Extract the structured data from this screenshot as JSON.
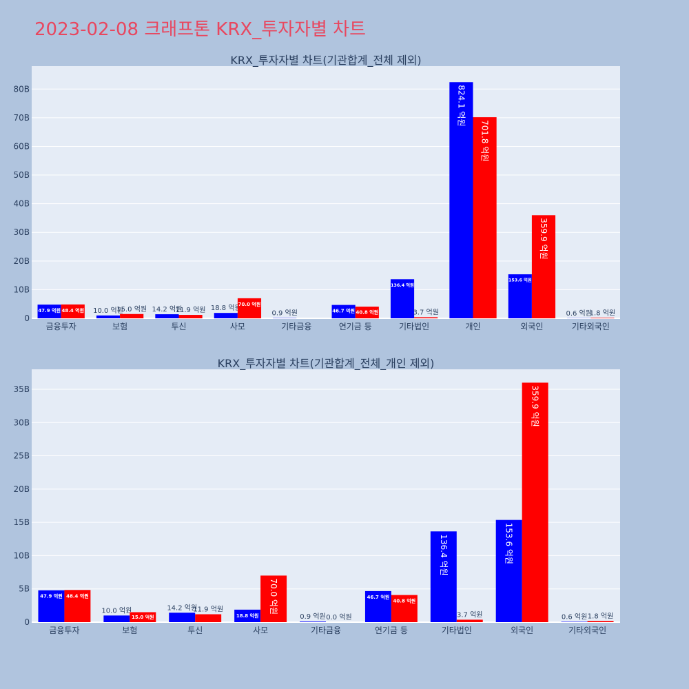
{
  "page": {
    "title": "2023-02-08 크래프톤 KRX_투자자별 차트"
  },
  "colors": {
    "buy": "#0000ff",
    "sell": "#ff0000",
    "background": "#b0c4de",
    "plot_background": "#e5ecf6",
    "title": "#e8475f"
  },
  "chart_data": [
    {
      "type": "bar",
      "title": "KRX_투자자별 차트(기관합계_전체 제외)",
      "categories": [
        "금융투자",
        "보험",
        "투신",
        "사모",
        "기타금융",
        "연기금 등",
        "기타법인",
        "개인",
        "외국인",
        "기타외국인"
      ],
      "ylim": [
        0,
        88
      ],
      "y_ticks": [
        0,
        10,
        20,
        30,
        40,
        50,
        60,
        70,
        80
      ],
      "y_tick_labels": [
        "0",
        "10B",
        "20B",
        "30B",
        "40B",
        "50B",
        "60B",
        "70B",
        "80B"
      ],
      "grid": true,
      "legend": "none",
      "series": [
        {
          "values": [
            4.79,
            1.0,
            1.42,
            1.88,
            0.09,
            4.67,
            13.64,
            82.41,
            15.36,
            0.06
          ],
          "labels": [
            "47.9 억원",
            "10.0 억원",
            "14.2 억원",
            "18.8 억원",
            "0.9 억원",
            "46.7 억원",
            "136.4 억원",
            "824.1 억원",
            "153.6 억원",
            "0.6 억원"
          ]
        },
        {
          "values": [
            4.84,
            1.5,
            1.19,
            7.0,
            null,
            4.08,
            0.37,
            70.18,
            35.99,
            0.18
          ],
          "labels": [
            "48.4 억원",
            "15.0 억원",
            "11.9 억원",
            "70.0 억원",
            null,
            "40.8 억원",
            "3.7 억원",
            "701.8 억원",
            "359.9 억원",
            "1.8 억원"
          ]
        }
      ]
    },
    {
      "type": "bar",
      "title": "KRX_투자자별 차트(기관합계_전체_개인 제외)",
      "categories": [
        "금융투자",
        "보험",
        "투신",
        "사모",
        "기타금융",
        "연기금 등",
        "기타법인",
        "외국인",
        "기타외국인"
      ],
      "ylim": [
        0,
        38
      ],
      "y_ticks": [
        0,
        5,
        10,
        15,
        20,
        25,
        30,
        35
      ],
      "y_tick_labels": [
        "0",
        "5B",
        "10B",
        "15B",
        "20B",
        "25B",
        "30B",
        "35B"
      ],
      "grid": true,
      "legend": "none",
      "series": [
        {
          "values": [
            4.79,
            1.0,
            1.42,
            1.88,
            0.09,
            4.67,
            13.64,
            15.36,
            0.06
          ],
          "labels": [
            "47.9 억원",
            "10.0 억원",
            "14.2 억원",
            "18.8 억원",
            "0.9 억원",
            "46.7 억원",
            "136.4 억원",
            "153.6 억원",
            "0.6 억원"
          ]
        },
        {
          "values": [
            4.84,
            1.5,
            1.19,
            7.0,
            0.0,
            4.08,
            0.37,
            35.99,
            0.18
          ],
          "labels": [
            "48.4 억원",
            "15.0 억원",
            "11.9 억원",
            "70.0 억원",
            "0.0 억원",
            "40.8 억원",
            "3.7 억원",
            "359.9 억원",
            "1.8 억원"
          ]
        }
      ]
    }
  ]
}
